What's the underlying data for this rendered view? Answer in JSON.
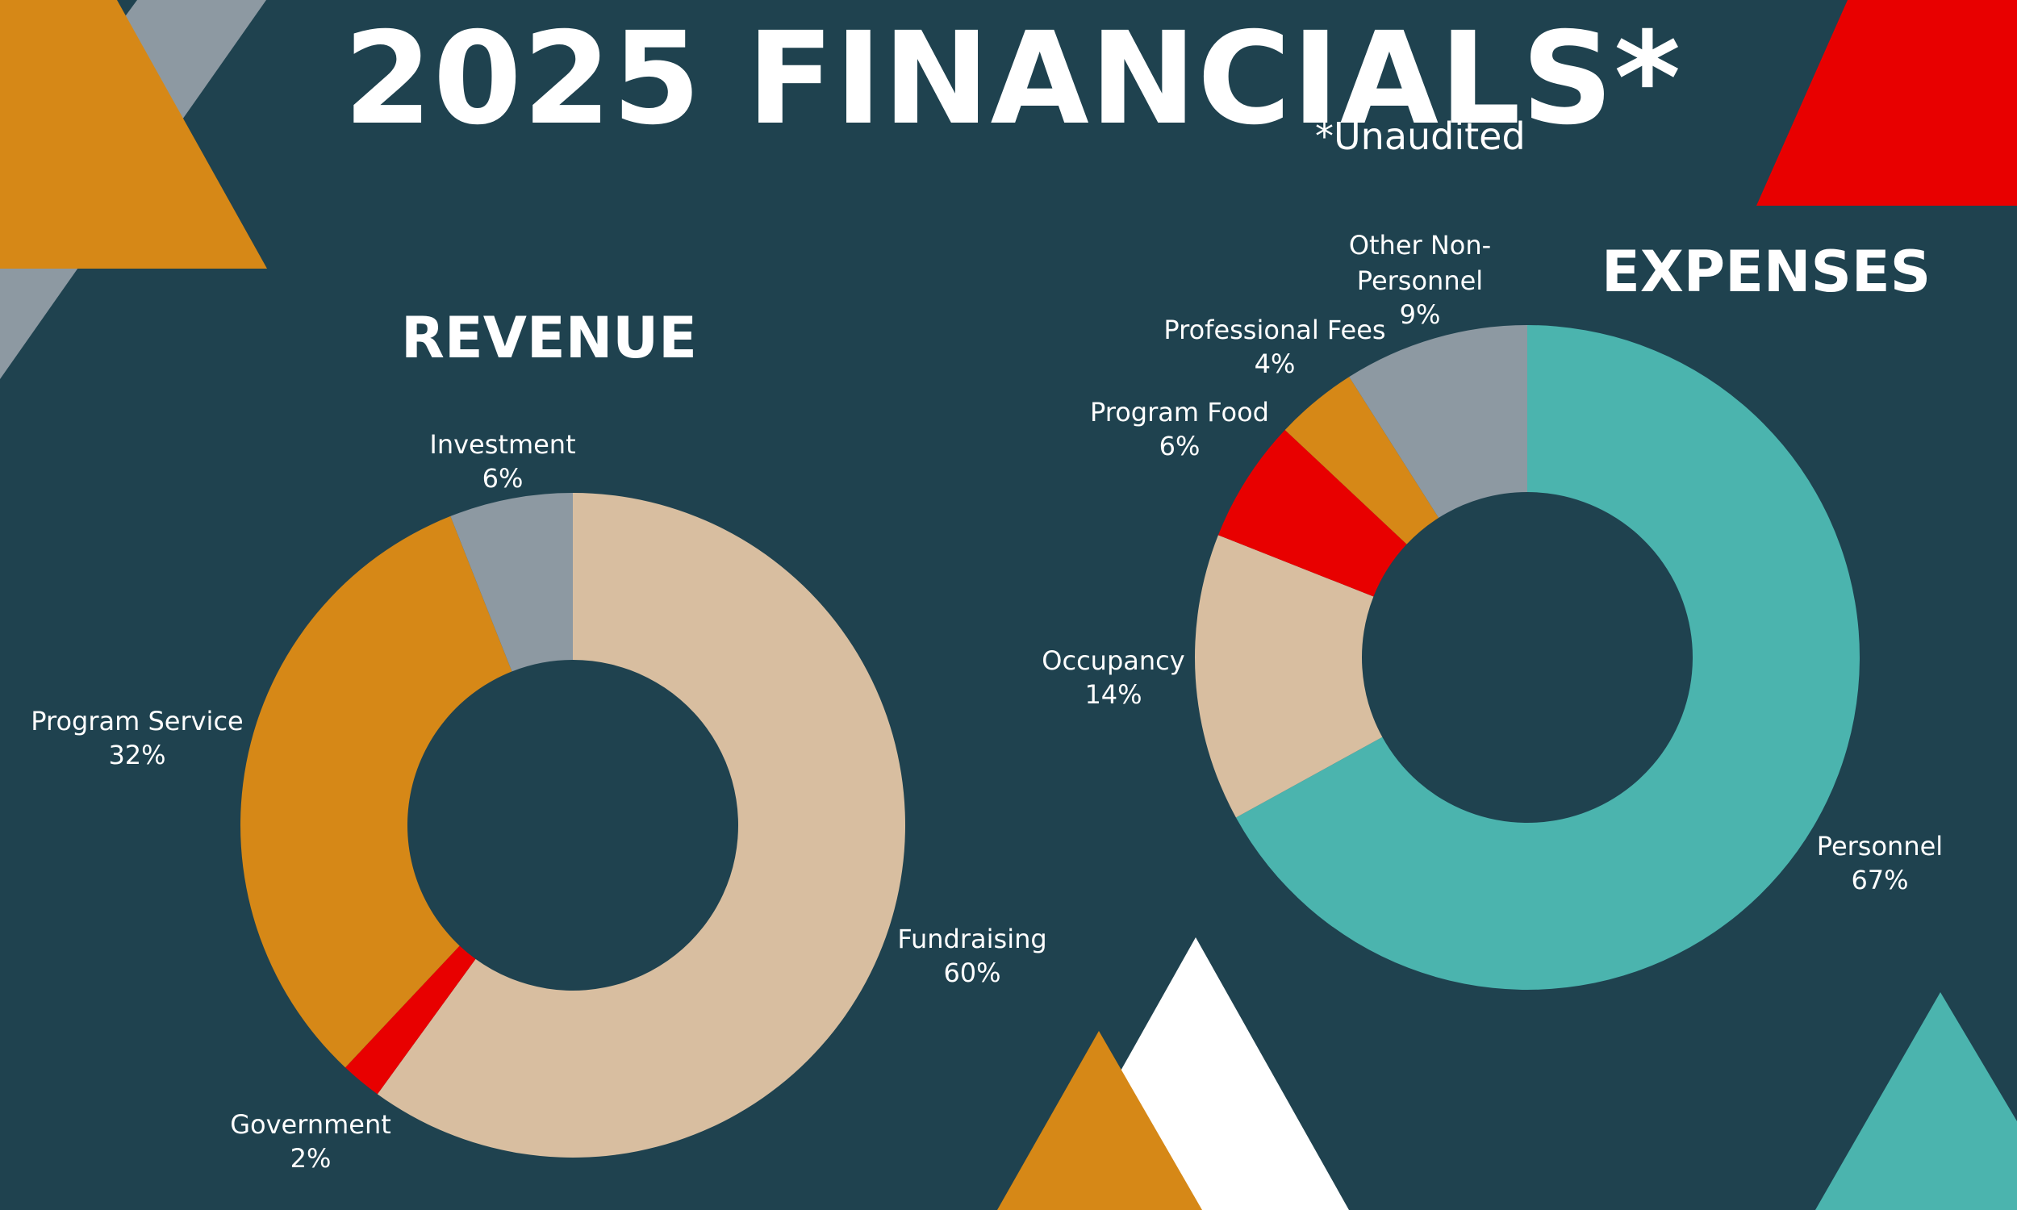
{
  "title": "2025 FINANCIALS*",
  "subtitle": "*Unaudited",
  "colors": {
    "background": "#1f424f",
    "teal": "#4bb4ae",
    "tan": "#d8bea0",
    "orange": "#d68817",
    "red": "#e80000",
    "gray": "#8d99a2",
    "white": "#ffffff"
  },
  "chart_data": [
    {
      "type": "pie",
      "title": "REVENUE",
      "slices": [
        {
          "label": "Fundraising",
          "pct_label": "60%",
          "value": 60,
          "color": "#d8bea0"
        },
        {
          "label": "Government",
          "pct_label": "2%",
          "value": 2,
          "color": "#e80000"
        },
        {
          "label": "Program Service",
          "pct_label": "32%",
          "value": 32,
          "color": "#d68817"
        },
        {
          "label": "Investment",
          "pct_label": "6%",
          "value": 6,
          "color": "#8d99a2"
        }
      ]
    },
    {
      "type": "pie",
      "title": "EXPENSES",
      "slices": [
        {
          "label": "Personnel",
          "pct_label": "67%",
          "value": 67,
          "color": "#4bb4ae"
        },
        {
          "label": "Occupancy",
          "pct_label": "14%",
          "value": 14,
          "color": "#d8bea0"
        },
        {
          "label": "Program Food",
          "pct_label": "6%",
          "value": 6,
          "color": "#e80000"
        },
        {
          "label": "Professional Fees",
          "pct_label": "4%",
          "value": 4,
          "color": "#d68817"
        },
        {
          "label": "Other Non-\nPersonnel",
          "pct_label": "9%",
          "value": 9,
          "color": "#8d99a2"
        }
      ]
    }
  ]
}
